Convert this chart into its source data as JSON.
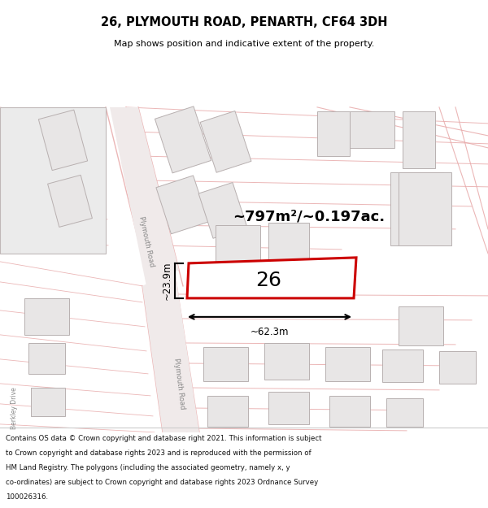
{
  "title": "26, PLYMOUTH ROAD, PENARTH, CF64 3DH",
  "subtitle": "Map shows position and indicative extent of the property.",
  "area_label": "~797m²/~0.197ac.",
  "width_label": "~62.3m",
  "height_label": "~23.9m",
  "plot_number": "26",
  "map_bg": "#f8f6f6",
  "building_fill": "#e8e6e6",
  "building_edge": "#b8b0b0",
  "highlight_fill": "#ffffff",
  "highlight_edge": "#cc0000",
  "road_fill": "#f0eaea",
  "road_line": "#e8aaaa",
  "road_label_color": "#888888",
  "dim_color": "#000000",
  "title_color": "#000000",
  "footer_lines": [
    "Contains OS data © Crown copyright and database right 2021. This information is subject",
    "to Crown copyright and database rights 2023 and is reproduced with the permission of",
    "HM Land Registry. The polygons (including the associated geometry, namely x, y",
    "co-ordinates) are subject to Crown copyright and database rights 2023 Ordnance Survey",
    "100026316."
  ]
}
